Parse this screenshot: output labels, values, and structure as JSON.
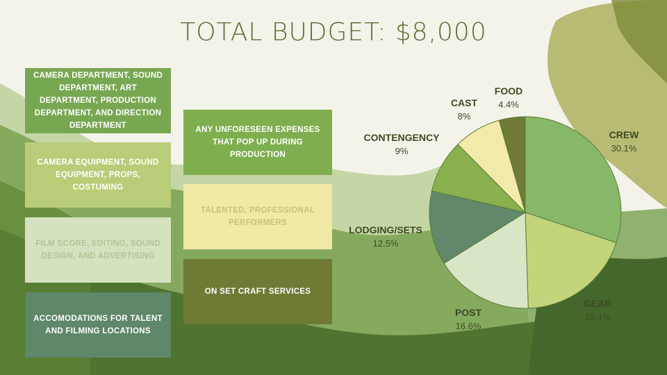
{
  "title": "TOTAL BUDGET: $8,000",
  "boxes": [
    {
      "text": "CAMERA DEPARTMENT, SOUND DEPARTMENT, ART DEPARTMENT, PRODUCTION DEPARTMENT, AND DIRECTION DEPARTMENT",
      "bg": "#78a752",
      "color": "#ffffff"
    },
    {
      "text": "CAMERA EQUIPMENT, SOUND EQUIPMENT, PROPS, COSTUMING",
      "bg": "#b9cc78",
      "color": "#ffffff"
    },
    {
      "text": "FILM SCORE, EDITING, SOUND DESIGN, AND ADVERTISING",
      "bg": "#d4e2c0",
      "color": "#b2c493"
    },
    {
      "text": "ACCOMODATIONS FOR TALENT AND FILMING LOCATIONS",
      "bg": "#5f8769",
      "color": "#ffffff"
    },
    {
      "text": "ANY UNFORESEEN EXPENSES THAT POP UP DURING PRODUCTION",
      "bg": "#7fae4f",
      "color": "#ffffff"
    },
    {
      "text": "TALENTED, PROFESSIONAL PERFORMERS",
      "bg": "#f1eaa6",
      "color": "#c8c27a"
    },
    {
      "text": "ON SET CRAFT SERVICES",
      "bg": "#6f7a35",
      "color": "#ffffff"
    }
  ],
  "chart_data": {
    "type": "pie",
    "title": "",
    "slices": [
      {
        "label": "CREW",
        "value": 30.1,
        "display": "30.1%",
        "color": "#86b868"
      },
      {
        "label": "GEAR",
        "value": 19.4,
        "display": "19.4%",
        "color": "#c3d57a"
      },
      {
        "label": "POST",
        "value": 16.6,
        "display": "16.6%",
        "color": "#d9e6c6"
      },
      {
        "label": "LODGING/SETS",
        "value": 12.5,
        "display": "12.5%",
        "color": "#62876a"
      },
      {
        "label": "CONTENGENCY",
        "value": 9,
        "display": "9%",
        "color": "#88b04c"
      },
      {
        "label": "CAST",
        "value": 8,
        "display": "8%",
        "color": "#f1eaa8"
      },
      {
        "label": "FOOD",
        "value": 4.4,
        "display": "4.4%",
        "color": "#6f7b36"
      }
    ],
    "start": "top",
    "direction": "clockwise",
    "labels_outside": true
  }
}
